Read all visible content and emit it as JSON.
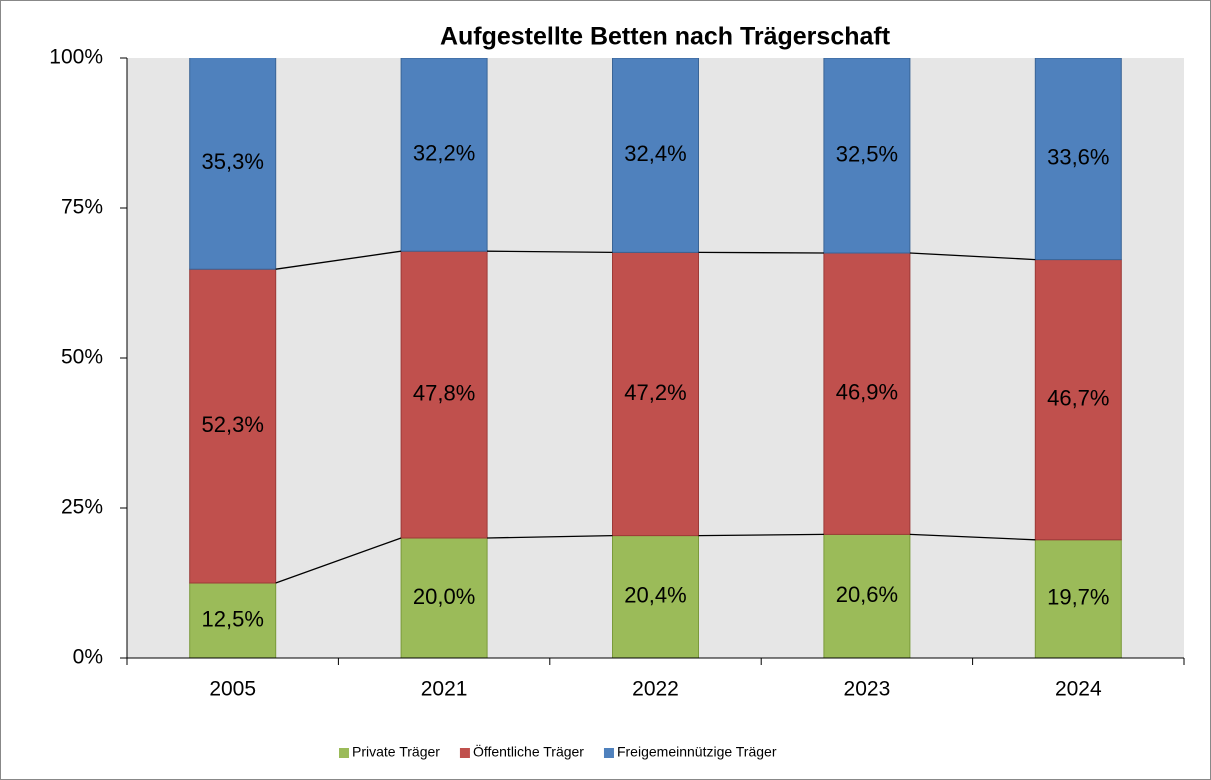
{
  "chart_data": {
    "type": "stacked_bar",
    "title": "Aufgestellte Betten nach Trägerschaft",
    "categories": [
      "2005",
      "2021",
      "2022",
      "2023",
      "2024"
    ],
    "series": [
      {
        "name": "Private Träger",
        "color": "#9bbb59",
        "values": [
          12.5,
          20.0,
          20.4,
          20.6,
          19.7
        ],
        "value_labels": [
          "12,5%",
          "20,0%",
          "20,4%",
          "20,6%",
          "19,7%"
        ]
      },
      {
        "name": "Öffentliche Träger",
        "color": "#c0504d",
        "values": [
          52.3,
          47.8,
          47.2,
          46.9,
          46.7
        ],
        "value_labels": [
          "52,3%",
          "47,8%",
          "47,2%",
          "46,9%",
          "46,7%"
        ]
      },
      {
        "name": "Freigemeinnützige Träger",
        "color": "#4f81bd",
        "values": [
          35.3,
          32.2,
          32.4,
          32.5,
          33.6
        ],
        "value_labels": [
          "35,3%",
          "32,2%",
          "32,4%",
          "32,5%",
          "33,6%"
        ]
      }
    ],
    "ylim": [
      0,
      100
    ],
    "yticks": [
      {
        "value": 0,
        "label": "0%"
      },
      {
        "value": 25,
        "label": "25%"
      },
      {
        "value": 50,
        "label": "50%"
      },
      {
        "value": 75,
        "label": "75%"
      },
      {
        "value": 100,
        "label": "100%"
      }
    ],
    "legend": "bottom"
  }
}
